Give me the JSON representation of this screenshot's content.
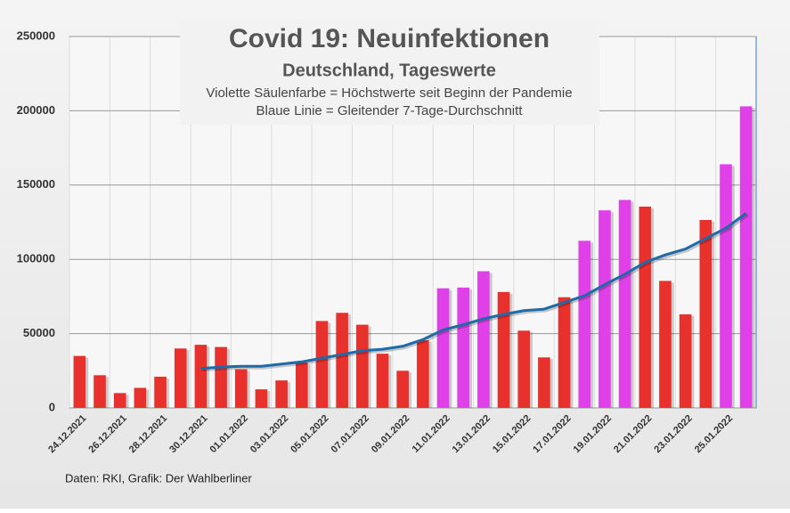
{
  "chart_data": {
    "type": "bar",
    "title": "Covid 19: Neuinfektionen",
    "subtitle": "Deutschland, Tageswerte",
    "annotations": [
      "Violette Säulenfarbe = Höchstwerte seit Beginn der Pandemie",
      "Blaue Linie = Gleitender 7-Tage-Durchschnitt"
    ],
    "source": "Daten: RKI, Grafik: Der Wahlberliner",
    "categories": [
      "24.12.2021",
      null,
      "26.12.2021",
      null,
      "28.12.2021",
      null,
      "30.12.2021",
      null,
      "01.01.2022",
      null,
      "03.01.2022",
      null,
      "05.01.2022",
      null,
      "07.01.2022",
      null,
      "09.01.2022",
      null,
      "11.01.2022",
      null,
      "13.01.2022",
      null,
      "15.01.2022",
      null,
      "17.01.2022",
      null,
      "19.01.2022",
      null,
      "21.01.2022",
      null,
      "23.01.2022",
      null,
      "25.01.2022",
      null
    ],
    "values": [
      35000,
      22000,
      10000,
      13500,
      21000,
      40000,
      42500,
      41000,
      26000,
      12500,
      18500,
      30500,
      58500,
      64000,
      56000,
      36500,
      25000,
      45500,
      80500,
      81000,
      92000,
      78000,
      52000,
      34000,
      74500,
      112500,
      133000,
      140000,
      135500,
      85500,
      63000,
      126500,
      164000,
      203000
    ],
    "colors": [
      "#e8302c",
      "#e8302c",
      "#e8302c",
      "#e8302c",
      "#e8302c",
      "#e8302c",
      "#e8302c",
      "#e8302c",
      "#e8302c",
      "#e8302c",
      "#e8302c",
      "#e8302c",
      "#e8302c",
      "#e8302c",
      "#e8302c",
      "#e8302c",
      "#e8302c",
      "#e8302c",
      "#e040e8",
      "#e040e8",
      "#e040e8",
      "#e8302c",
      "#e8302c",
      "#e8302c",
      "#e8302c",
      "#e040e8",
      "#e040e8",
      "#e040e8",
      "#e8302c",
      "#e8302c",
      "#e8302c",
      "#e8302c",
      "#e040e8",
      "#e040e8"
    ],
    "line": {
      "color": "#1f6aa8",
      "values": [
        null,
        null,
        null,
        null,
        null,
        null,
        26500,
        27500,
        28000,
        28000,
        29500,
        31000,
        33500,
        36000,
        38500,
        39500,
        41500,
        46000,
        52500,
        56000,
        60000,
        63000,
        65500,
        66500,
        71000,
        75500,
        83000,
        90000,
        98000,
        103000,
        107000,
        114000,
        121000,
        131000
      ]
    },
    "ylim": [
      0,
      250000
    ],
    "yticks": [
      0,
      50000,
      100000,
      150000,
      200000,
      250000
    ],
    "grid": true
  }
}
